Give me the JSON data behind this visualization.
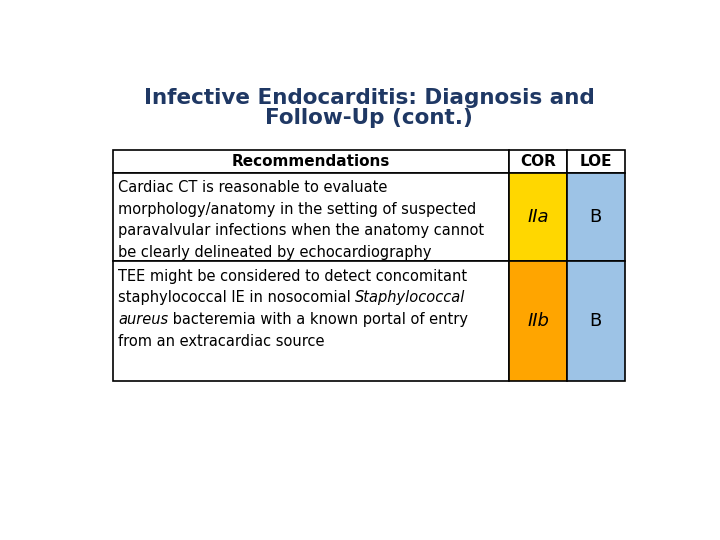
{
  "title_line1": "Infective Endocarditis: Diagnosis and",
  "title_line2": "Follow-Up (cont.)",
  "title_color": "#1F3864",
  "background_color": "#FFFFFF",
  "header_label_recommendations": "Recommendations",
  "header_label_cor": "COR",
  "header_label_loe": "LOE",
  "rows": [
    {
      "lines": [
        {
          "text": "Cardiac CT is reasonable to evaluate",
          "italic": false
        },
        {
          "text": "morphology/anatomy in the setting of suspected",
          "italic": false
        },
        {
          "text": "paravalvular infections when the anatomy cannot",
          "italic": false
        },
        {
          "text": "be clearly delineated by echocardiography",
          "italic": false
        }
      ],
      "cor": "IIa",
      "loe": "B",
      "cor_color": "#FFD700",
      "loe_color": "#9DC3E6"
    },
    {
      "lines": [
        [
          {
            "text": "TEE might be considered to detect concomitant",
            "italic": false
          }
        ],
        [
          {
            "text": "staphylococcal IE in nosocomial ",
            "italic": false
          },
          {
            "text": "Staphylococcal",
            "italic": true
          }
        ],
        [
          {
            "text": "aureus",
            "italic": true
          },
          {
            "text": " bacteremia with a known portal of entry",
            "italic": false
          }
        ],
        [
          {
            "text": "from an extracardiac source",
            "italic": false
          }
        ]
      ],
      "cor": "IIb",
      "loe": "B",
      "cor_color": "#FFA500",
      "loe_color": "#9DC3E6"
    }
  ],
  "border_color": "#000000",
  "text_color": "#000000"
}
